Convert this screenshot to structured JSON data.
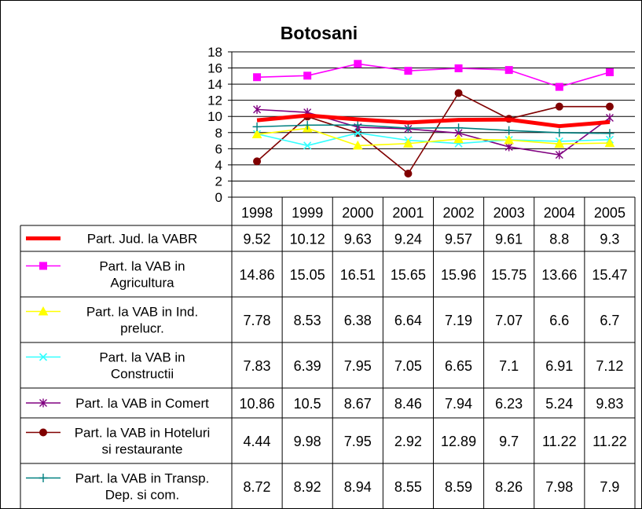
{
  "chart_data": {
    "type": "line",
    "title": "Botosani",
    "xlabel": "",
    "ylabel": "",
    "ylim": [
      0,
      18
    ],
    "ytick_step": 2,
    "grid": true,
    "legend": "data-table",
    "categories": [
      "1998",
      "1999",
      "2000",
      "2001",
      "2002",
      "2003",
      "2004",
      "2005"
    ],
    "series": [
      {
        "name": "Part. Jud. la VABR",
        "name_lines": [
          "Part. Jud. la VABR"
        ],
        "color": "#ff0000",
        "marker": "none",
        "thick": true,
        "values": [
          9.52,
          10.12,
          9.63,
          9.24,
          9.57,
          9.61,
          8.8,
          9.3
        ],
        "labels": [
          "9.52",
          "10.12",
          "9.63",
          "9.24",
          "9.57",
          "9.61",
          "8.8",
          "9.3"
        ]
      },
      {
        "name": "Part. la VAB in Agricultura",
        "name_lines": [
          "Part. la VAB in",
          "Agricultura"
        ],
        "color": "#ff00ff",
        "marker": "square",
        "values": [
          14.86,
          15.05,
          16.51,
          15.65,
          15.96,
          15.75,
          13.66,
          15.47
        ],
        "labels": [
          "14.86",
          "15.05",
          "16.51",
          "15.65",
          "15.96",
          "15.75",
          "13.66",
          "15.47"
        ]
      },
      {
        "name": "Part. la VAB in Ind. prelucr.",
        "name_lines": [
          "Part. la VAB in Ind.",
          "prelucr."
        ],
        "color": "#ffff00",
        "marker": "triangle",
        "values": [
          7.78,
          8.53,
          6.38,
          6.64,
          7.19,
          7.07,
          6.6,
          6.7
        ],
        "labels": [
          "7.78",
          "8.53",
          "6.38",
          "6.64",
          "7.19",
          "7.07",
          "6.6",
          "6.7"
        ]
      },
      {
        "name": "Part. la VAB in Constructii",
        "name_lines": [
          "Part. la VAB in",
          "Constructii"
        ],
        "color": "#33ffff",
        "marker": "x",
        "values": [
          7.83,
          6.39,
          7.95,
          7.05,
          6.65,
          7.1,
          6.91,
          7.12
        ],
        "labels": [
          "7.83",
          "6.39",
          "7.95",
          "7.05",
          "6.65",
          "7.1",
          "6.91",
          "7.12"
        ]
      },
      {
        "name": "Part. la VAB in Comert",
        "name_lines": [
          "Part. la VAB in Comert"
        ],
        "color": "#800080",
        "marker": "star",
        "values": [
          10.86,
          10.5,
          8.67,
          8.46,
          7.94,
          6.23,
          5.24,
          9.83
        ],
        "labels": [
          "10.86",
          "10.5",
          "8.67",
          "8.46",
          "7.94",
          "6.23",
          "5.24",
          "9.83"
        ]
      },
      {
        "name": "Part. la VAB in Hoteluri si restaurante",
        "name_lines": [
          "Part. la VAB in Hoteluri",
          "si restaurante"
        ],
        "color": "#800000",
        "marker": "circle",
        "values": [
          4.44,
          9.98,
          7.95,
          2.92,
          12.89,
          9.7,
          11.22,
          11.22
        ],
        "labels": [
          "4.44",
          "9.98",
          "7.95",
          "2.92",
          "12.89",
          "9.7",
          "11.22",
          "11.22"
        ]
      },
      {
        "name": "Part. la VAB in Transp. Dep. si com.",
        "name_lines": [
          "Part. la VAB in Transp.",
          "Dep. si com."
        ],
        "color": "#008080",
        "marker": "plus",
        "values": [
          8.72,
          8.92,
          8.94,
          8.55,
          8.59,
          8.26,
          7.98,
          7.9
        ],
        "labels": [
          "8.72",
          "8.92",
          "8.94",
          "8.55",
          "8.59",
          "8.26",
          "7.98",
          "7.9"
        ]
      }
    ]
  }
}
